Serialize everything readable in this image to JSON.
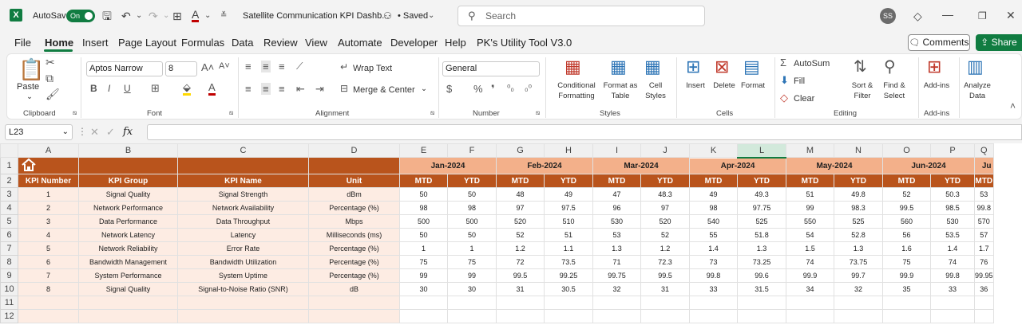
{
  "titlebar": {
    "app_logo": "X",
    "autosave_label": "AutoSave",
    "autosave_state": "On",
    "doc_title": "Satellite Communication KPI Dashb...",
    "saved_label": "• Saved",
    "search_placeholder": "Search",
    "user_initials": "SS"
  },
  "menu": [
    "File",
    "Home",
    "Insert",
    "Page Layout",
    "Formulas",
    "Data",
    "Review",
    "View",
    "Automate",
    "Developer",
    "Help",
    "PK's Utility Tool V3.0"
  ],
  "menu_active": "Home",
  "actions": {
    "comments": "Comments",
    "share": "Share"
  },
  "ribbon": {
    "clipboard": {
      "paste": "Paste",
      "group": "Clipboard"
    },
    "font": {
      "name": "Aptos Narrow",
      "size": "8",
      "group": "Font"
    },
    "alignment": {
      "wrap": "Wrap Text",
      "merge": "Merge & Center",
      "group": "Alignment"
    },
    "number": {
      "format": "General",
      "group": "Number"
    },
    "styles": {
      "cond1": "Conditional",
      "cond2": "Formatting",
      "fmt1": "Format as",
      "fmt2": "Table",
      "cell1": "Cell",
      "cell2": "Styles",
      "group": "Styles"
    },
    "cells": {
      "insert": "Insert",
      "delete": "Delete",
      "format": "Format",
      "group": "Cells"
    },
    "editing": {
      "autosum": "AutoSum",
      "fill": "Fill",
      "clear": "Clear",
      "sort1": "Sort &",
      "sort2": "Filter",
      "find1": "Find &",
      "find2": "Select",
      "group": "Editing"
    },
    "addins": {
      "label": "Add-ins",
      "group": "Add-ins"
    },
    "analyze": {
      "l1": "Analyze",
      "l2": "Data"
    }
  },
  "formula_bar": {
    "cell_ref": "L23",
    "fx": "fx",
    "value": ""
  },
  "sheet": {
    "columns": [
      "A",
      "B",
      "C",
      "D",
      "E",
      "F",
      "G",
      "H",
      "I",
      "J",
      "K",
      "L",
      "M",
      "N",
      "O",
      "P",
      "Q"
    ],
    "selected_column": "L",
    "rows": [
      "1",
      "2",
      "3",
      "4",
      "5",
      "6",
      "7",
      "8",
      "9",
      "10",
      "11",
      "12"
    ],
    "months": [
      "Jan-2024",
      "Feb-2024",
      "Mar-2024",
      "Apr-2024",
      "May-2024",
      "Jun-2024",
      "Ju"
    ],
    "headers": [
      "KPI Number",
      "KPI Group",
      "KPI Name",
      "Unit"
    ],
    "mtd": "MTD",
    "ytd": "YTD",
    "kpis": [
      {
        "num": "1",
        "group": "Signal Quality",
        "name": "Signal Strength",
        "unit": "dBm",
        "vals": [
          "50",
          "50",
          "48",
          "49",
          "47",
          "48.3",
          "49",
          "49.3",
          "51",
          "49.8",
          "52",
          "50.3",
          "53"
        ]
      },
      {
        "num": "2",
        "group": "Network Performance",
        "name": "Network Availability",
        "unit": "Percentage (%)",
        "vals": [
          "98",
          "98",
          "97",
          "97.5",
          "96",
          "97",
          "98",
          "97.75",
          "99",
          "98.3",
          "99.5",
          "98.5",
          "99.8"
        ]
      },
      {
        "num": "3",
        "group": "Data Performance",
        "name": "Data Throughput",
        "unit": "Mbps",
        "vals": [
          "500",
          "500",
          "520",
          "510",
          "530",
          "520",
          "540",
          "525",
          "550",
          "525",
          "560",
          "530",
          "570"
        ]
      },
      {
        "num": "4",
        "group": "Network Latency",
        "name": "Latency",
        "unit": "Milliseconds (ms)",
        "vals": [
          "50",
          "50",
          "52",
          "51",
          "53",
          "52",
          "55",
          "51.8",
          "54",
          "52.8",
          "56",
          "53.5",
          "57"
        ]
      },
      {
        "num": "5",
        "group": "Network Reliability",
        "name": "Error Rate",
        "unit": "Percentage (%)",
        "vals": [
          "1",
          "1",
          "1.2",
          "1.1",
          "1.3",
          "1.2",
          "1.4",
          "1.3",
          "1.5",
          "1.3",
          "1.6",
          "1.4",
          "1.7"
        ]
      },
      {
        "num": "6",
        "group": "Bandwidth Management",
        "name": "Bandwidth Utilization",
        "unit": "Percentage (%)",
        "vals": [
          "75",
          "75",
          "72",
          "73.5",
          "71",
          "72.3",
          "73",
          "73.25",
          "74",
          "73.75",
          "75",
          "74",
          "76"
        ]
      },
      {
        "num": "7",
        "group": "System Performance",
        "name": "System Uptime",
        "unit": "Percentage (%)",
        "vals": [
          "99",
          "99",
          "99.5",
          "99.25",
          "99.75",
          "99.5",
          "99.8",
          "99.6",
          "99.9",
          "99.7",
          "99.9",
          "99.8",
          "99.95"
        ]
      },
      {
        "num": "8",
        "group": "Signal Quality",
        "name": "Signal-to-Noise Ratio (SNR)",
        "unit": "dB",
        "vals": [
          "30",
          "30",
          "31",
          "30.5",
          "32",
          "31",
          "33",
          "31.5",
          "34",
          "32",
          "35",
          "33",
          "36"
        ]
      }
    ]
  }
}
